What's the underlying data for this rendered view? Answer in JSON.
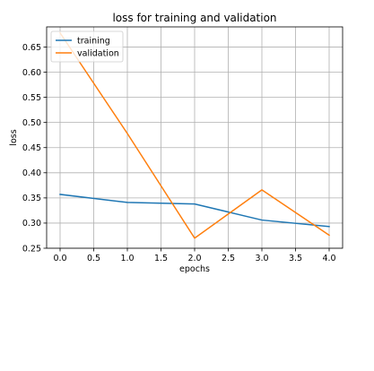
{
  "chart_data": {
    "type": "line",
    "title": "loss for training and validation",
    "xlabel": "epochs",
    "ylabel": "loss",
    "x": [
      0,
      1,
      2,
      3,
      4
    ],
    "xlim": [
      -0.2,
      4.2
    ],
    "ylim": [
      0.25,
      0.69
    ],
    "xticks": [
      0.0,
      0.5,
      1.0,
      1.5,
      2.0,
      2.5,
      3.0,
      3.5,
      4.0
    ],
    "xtick_labels": [
      "0.0",
      "0.5",
      "1.0",
      "1.5",
      "2.0",
      "2.5",
      "3.0",
      "3.5",
      "4.0"
    ],
    "yticks": [
      0.25,
      0.3,
      0.35,
      0.4,
      0.45,
      0.5,
      0.55,
      0.6,
      0.65
    ],
    "ytick_labels": [
      "0.25",
      "0.30",
      "0.35",
      "0.40",
      "0.45",
      "0.50",
      "0.55",
      "0.60",
      "0.65"
    ],
    "grid": true,
    "legend_position": "top-left",
    "series": [
      {
        "name": "training",
        "color": "#1f77b4",
        "values": [
          0.357,
          0.341,
          0.338,
          0.306,
          0.293
        ]
      },
      {
        "name": "validation",
        "color": "#ff7f0e",
        "values": [
          0.678,
          0.478,
          0.27,
          0.366,
          0.276
        ]
      }
    ]
  }
}
